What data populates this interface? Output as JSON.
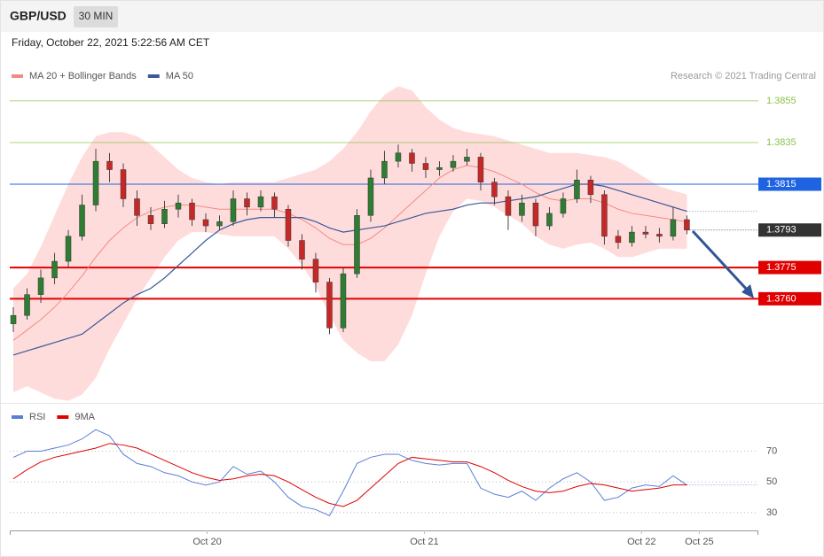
{
  "header": {
    "symbol": "GBP/USD",
    "interval": "30 MIN",
    "timestamp": "Friday, October 22, 2021 5:22:56 AM CET"
  },
  "chart_data": [
    {
      "type": "candlestick",
      "credit": "Research © 2021 Trading Central",
      "x": [
        0,
        1,
        2,
        3,
        4,
        5,
        6,
        7,
        8,
        9,
        10,
        11,
        12,
        13,
        14,
        15,
        16,
        17,
        18,
        19,
        20,
        21,
        22,
        23,
        24,
        25,
        26,
        27,
        28,
        29,
        30,
        31,
        32,
        33,
        34,
        35,
        36,
        37,
        38,
        39,
        40,
        41,
        42,
        43,
        44,
        45,
        46,
        47,
        48,
        49
      ],
      "xlim": [
        -0.26,
        54.2
      ],
      "xticks": [
        {
          "value": 14.1,
          "label": "Oct 20"
        },
        {
          "value": 29.9,
          "label": "Oct 21"
        },
        {
          "value": 45.7,
          "label": "Oct 22"
        },
        {
          "value": 49.9,
          "label": "Oct 25"
        }
      ],
      "ylim": [
        1.371,
        1.3886
      ],
      "up_color": "#2e7d32",
      "down_color": "#c62828",
      "open": [
        1.3748,
        1.3752,
        1.3762,
        1.377,
        1.3778,
        1.379,
        1.3805,
        1.3826,
        1.3822,
        1.3808,
        1.38,
        1.3796,
        1.3803,
        1.3806,
        1.3798,
        1.3795,
        1.3797,
        1.3808,
        1.3804,
        1.3809,
        1.3803,
        1.3788,
        1.3779,
        1.3768,
        1.3746,
        1.3772,
        1.38,
        1.3818,
        1.3826,
        1.383,
        1.3825,
        1.3822,
        1.3823,
        1.3826,
        1.3828,
        1.3816,
        1.3809,
        1.38,
        1.3806,
        1.3795,
        1.3801,
        1.3808,
        1.3817,
        1.381,
        1.379,
        1.3787,
        1.3792,
        1.3791,
        1.379,
        1.3798
      ],
      "high": [
        1.3756,
        1.3765,
        1.3774,
        1.3782,
        1.3793,
        1.381,
        1.3832,
        1.383,
        1.3825,
        1.3812,
        1.3804,
        1.3807,
        1.381,
        1.3808,
        1.3801,
        1.38,
        1.3812,
        1.3811,
        1.3812,
        1.3811,
        1.3805,
        1.3791,
        1.3782,
        1.377,
        1.3775,
        1.3803,
        1.3822,
        1.3831,
        1.3834,
        1.3832,
        1.3828,
        1.3826,
        1.3829,
        1.3832,
        1.383,
        1.3818,
        1.3812,
        1.381,
        1.3808,
        1.3804,
        1.3811,
        1.3822,
        1.3819,
        1.3812,
        1.3793,
        1.3795,
        1.3795,
        1.3794,
        1.3804,
        1.38
      ],
      "low": [
        1.3744,
        1.375,
        1.3758,
        1.3767,
        1.3775,
        1.3788,
        1.3802,
        1.3816,
        1.3804,
        1.3795,
        1.3793,
        1.3794,
        1.3799,
        1.3795,
        1.3792,
        1.3793,
        1.3795,
        1.38,
        1.3802,
        1.3799,
        1.3785,
        1.3774,
        1.3763,
        1.3743,
        1.3744,
        1.377,
        1.3797,
        1.3815,
        1.3823,
        1.3821,
        1.3818,
        1.3819,
        1.3821,
        1.3824,
        1.3812,
        1.3805,
        1.3793,
        1.3797,
        1.379,
        1.3793,
        1.3799,
        1.3806,
        1.3806,
        1.3786,
        1.3784,
        1.3785,
        1.3789,
        1.3787,
        1.3788,
        1.3791
      ],
      "close": [
        1.3752,
        1.3762,
        1.377,
        1.3778,
        1.379,
        1.3805,
        1.3826,
        1.3822,
        1.3808,
        1.38,
        1.3796,
        1.3803,
        1.3806,
        1.3798,
        1.3795,
        1.3797,
        1.3808,
        1.3804,
        1.3809,
        1.3803,
        1.3788,
        1.3779,
        1.3768,
        1.3746,
        1.3772,
        1.38,
        1.3818,
        1.3826,
        1.383,
        1.3825,
        1.3822,
        1.3823,
        1.3826,
        1.3828,
        1.3816,
        1.3809,
        1.38,
        1.3806,
        1.3795,
        1.3801,
        1.3808,
        1.3817,
        1.381,
        1.379,
        1.3787,
        1.3792,
        1.3791,
        1.379,
        1.3798,
        1.3793
      ],
      "series": [
        {
          "name": "MA 20 + Bollinger Bands",
          "color": "#f28b82",
          "band_color": "#ffdcdc",
          "values": [
            1.374,
            1.3745,
            1.375,
            1.3756,
            1.3763,
            1.3771,
            1.378,
            1.3788,
            1.3794,
            1.3799,
            1.3802,
            1.3804,
            1.3805,
            1.3805,
            1.3804,
            1.3803,
            1.3803,
            1.3803,
            1.3803,
            1.3803,
            1.3801,
            1.3798,
            1.3794,
            1.3789,
            1.3786,
            1.3786,
            1.3789,
            1.3794,
            1.38,
            1.3806,
            1.3812,
            1.3818,
            1.3822,
            1.3824,
            1.3823,
            1.3821,
            1.3818,
            1.3815,
            1.3811,
            1.3808,
            1.3807,
            1.3808,
            1.3808,
            1.3806,
            1.3803,
            1.3801,
            1.38,
            1.3799,
            1.3798,
            1.3797
          ],
          "upper": [
            1.3765,
            1.3772,
            1.3785,
            1.38,
            1.3815,
            1.3828,
            1.3838,
            1.384,
            1.384,
            1.3838,
            1.3834,
            1.3828,
            1.3822,
            1.3818,
            1.3816,
            1.3815,
            1.3816,
            1.3816,
            1.3816,
            1.3816,
            1.3818,
            1.382,
            1.3822,
            1.3826,
            1.3832,
            1.384,
            1.385,
            1.3858,
            1.3862,
            1.386,
            1.3852,
            1.3846,
            1.3842,
            1.384,
            1.3839,
            1.3838,
            1.3836,
            1.3834,
            1.3832,
            1.383,
            1.383,
            1.383,
            1.3829,
            1.3828,
            1.3826,
            1.3822,
            1.3818,
            1.3814,
            1.3812,
            1.381
          ],
          "lower": [
            1.3715,
            1.3718,
            1.3715,
            1.3712,
            1.3711,
            1.3714,
            1.3722,
            1.3736,
            1.3748,
            1.376,
            1.377,
            1.378,
            1.3788,
            1.3792,
            1.3792,
            1.3791,
            1.379,
            1.379,
            1.379,
            1.379,
            1.3784,
            1.3776,
            1.3766,
            1.3752,
            1.374,
            1.3734,
            1.373,
            1.373,
            1.3738,
            1.3752,
            1.3772,
            1.379,
            1.3802,
            1.3808,
            1.3807,
            1.3804,
            1.38,
            1.3796,
            1.379,
            1.3786,
            1.3784,
            1.3786,
            1.3787,
            1.3784,
            1.378,
            1.378,
            1.3782,
            1.3784,
            1.3784,
            1.3784
          ]
        },
        {
          "name": "MA 50",
          "color": "#3b5998",
          "values": [
            1.3733,
            1.3735,
            1.3737,
            1.3739,
            1.3741,
            1.3743,
            1.3748,
            1.3753,
            1.3758,
            1.3762,
            1.3765,
            1.377,
            1.3776,
            1.3782,
            1.3788,
            1.3793,
            1.3796,
            1.3798,
            1.3799,
            1.3799,
            1.3799,
            1.3799,
            1.3797,
            1.3794,
            1.3792,
            1.3793,
            1.3794,
            1.3795,
            1.3797,
            1.3799,
            1.3801,
            1.3802,
            1.3803,
            1.3805,
            1.3806,
            1.3806,
            1.3807,
            1.3808,
            1.3809,
            1.3811,
            1.3813,
            1.3815,
            1.3815,
            1.3814,
            1.3812,
            1.381,
            1.3808,
            1.3806,
            1.3804,
            1.3802
          ]
        }
      ],
      "levels": [
        {
          "value": 1.3855,
          "label": "1.3855",
          "color": "#8bc34a",
          "line": true,
          "box": false
        },
        {
          "value": 1.3835,
          "label": "1.3835",
          "color": "#8bc34a",
          "line": true,
          "box": false
        },
        {
          "value": 1.3815,
          "label": "1.3815",
          "color": "#1e63e0",
          "line": true,
          "box": true
        },
        {
          "value": 1.3793,
          "label": "1.3793",
          "color": "#333333",
          "line": false,
          "box": true
        },
        {
          "value": 1.3775,
          "label": "1.3775",
          "color": "#e00000",
          "line": true,
          "box": true
        },
        {
          "value": 1.376,
          "label": "1.3760",
          "color": "#e00000",
          "line": true,
          "box": true
        }
      ]
    },
    {
      "type": "line",
      "ylim": [
        19,
        87
      ],
      "yticks": [
        30,
        50,
        70
      ],
      "grid": true,
      "series": [
        {
          "name": "RSI",
          "color": "#5b7fd6",
          "values": [
            66,
            70,
            70,
            72,
            74,
            78,
            84,
            80,
            68,
            62,
            60,
            56,
            54,
            50,
            48,
            50,
            60,
            55,
            57,
            50,
            40,
            34,
            32,
            28,
            44,
            62,
            66,
            68,
            68,
            64,
            62,
            61,
            62,
            62,
            46,
            42,
            40,
            44,
            38,
            46,
            52,
            56,
            50,
            38,
            40,
            46,
            48,
            47,
            54,
            48
          ]
        },
        {
          "name": "9MA",
          "color": "#e00000",
          "values": [
            52,
            58,
            63,
            66,
            68,
            70,
            72,
            75,
            74,
            72,
            68,
            64,
            60,
            56,
            53,
            51,
            52,
            54,
            55,
            54,
            50,
            45,
            40,
            36,
            34,
            38,
            46,
            54,
            62,
            66,
            65,
            64,
            63,
            63,
            60,
            56,
            51,
            47,
            44,
            43,
            44,
            47,
            49,
            48,
            46,
            44,
            45,
            46,
            48,
            48
          ]
        }
      ]
    }
  ]
}
